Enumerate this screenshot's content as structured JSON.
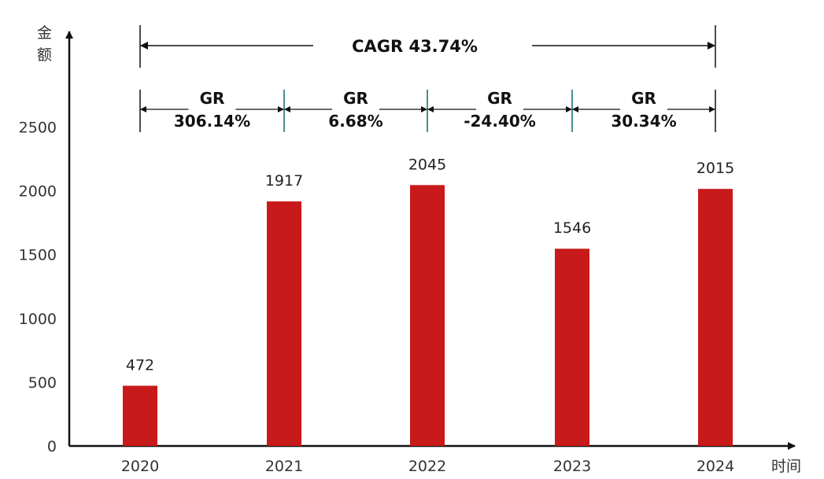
{
  "chart_data": {
    "type": "bar",
    "categories": [
      "2020",
      "2021",
      "2022",
      "2023",
      "2024"
    ],
    "values": [
      472,
      1917,
      2045,
      1546,
      2015
    ],
    "data_labels": [
      "472",
      "1917",
      "2045",
      "1546",
      "2015"
    ],
    "xlabel": "时间",
    "ylabel": "金额",
    "ylabel_chars": [
      "金",
      "额"
    ],
    "yticks": [
      "0",
      "500",
      "1000",
      "1500",
      "2000",
      "2500"
    ],
    "ylim": [
      0,
      3000
    ],
    "grid": false,
    "legend": "none",
    "bar_color": "#c81a1a",
    "annotations": {
      "cagr": "CAGR 43.74%",
      "growth": [
        {
          "line1": "GR",
          "line2": "306.14%"
        },
        {
          "line1": "GR",
          "line2": "6.68%"
        },
        {
          "line1": "GR",
          "line2": "-24.40%"
        },
        {
          "line1": "GR",
          "line2": "30.34%"
        }
      ]
    }
  }
}
